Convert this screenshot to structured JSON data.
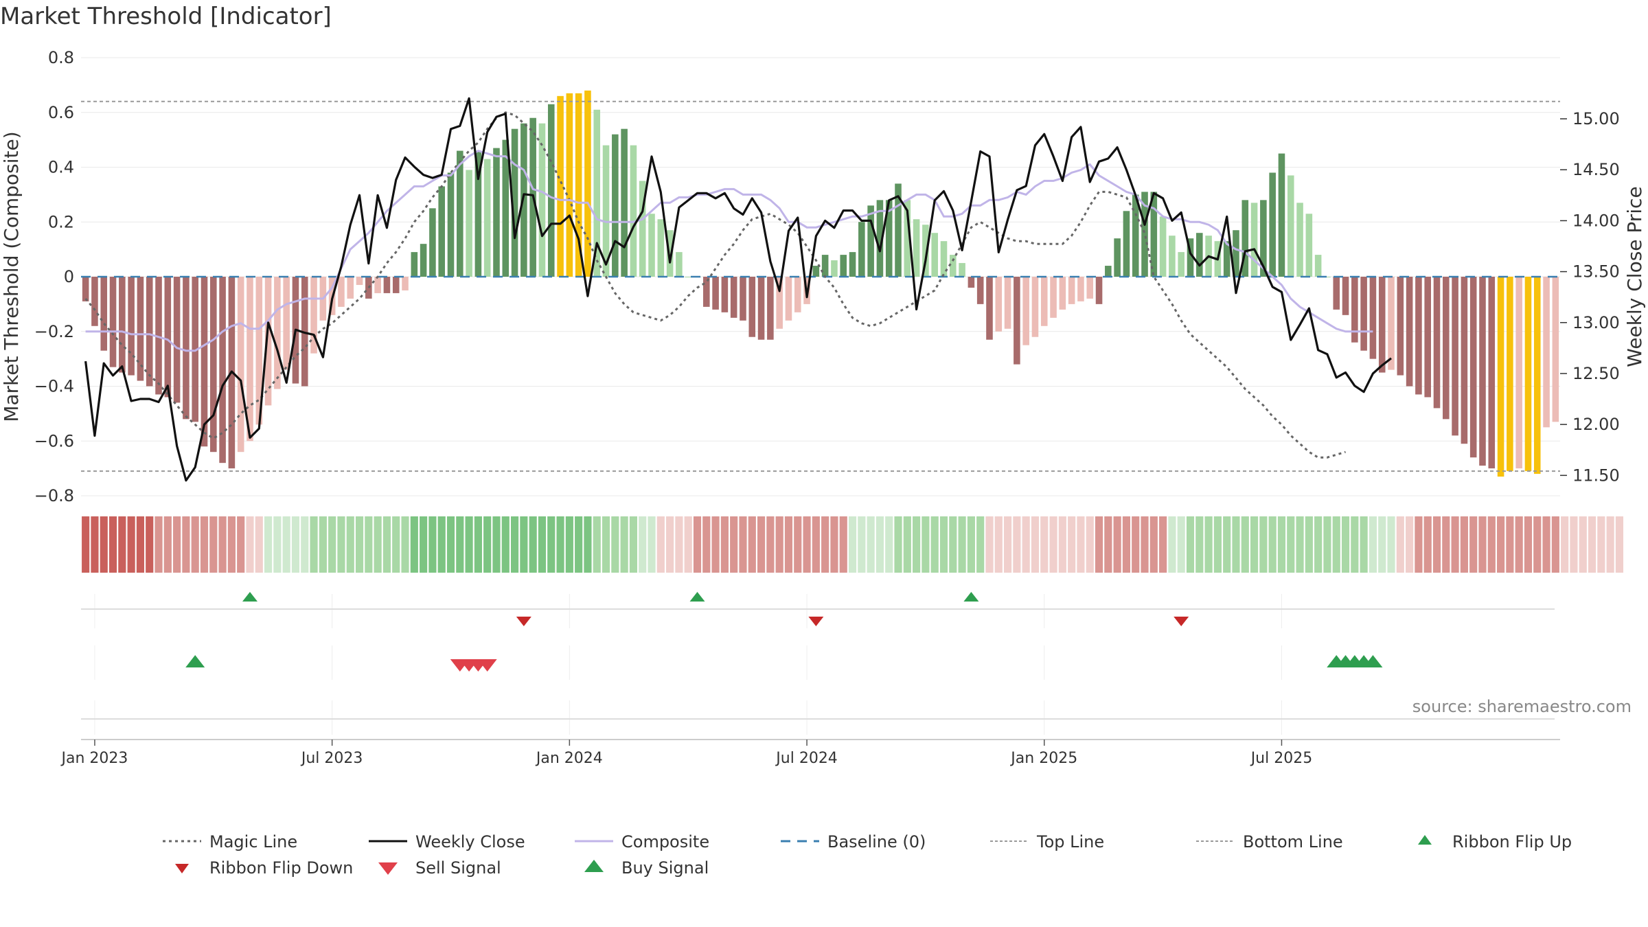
{
  "title": "Market Threshold [Indicator]",
  "source": "source: sharemaestro.com",
  "chart_data": {
    "type": "bar+line",
    "title": "Market Threshold [Indicator]",
    "ylabel_left": "Market Threshold (Composite)",
    "ylabel_right": "Weekly Close Price",
    "ylim_left": [
      -0.8,
      0.8
    ],
    "ylim_right": [
      11.3,
      15.6
    ],
    "yticks_left": [
      "0.8",
      "0.6",
      "0.4",
      "0.2",
      "0",
      "−0.2",
      "−0.4",
      "−0.6",
      "−0.8"
    ],
    "yticks_left_values": [
      0.8,
      0.6,
      0.4,
      0.2,
      0,
      -0.2,
      -0.4,
      -0.6,
      -0.8
    ],
    "yticks_right": [
      "15.00",
      "14.50",
      "14.00",
      "13.50",
      "13.00",
      "12.50",
      "12.00",
      "11.50"
    ],
    "yticks_right_values": [
      15.0,
      14.5,
      14.0,
      13.5,
      13.0,
      12.5,
      12.0,
      11.5
    ],
    "xticks": [
      "Jan 2023",
      "Jul 2023",
      "Jan 2024",
      "Jul 2024",
      "Jan 2025",
      "Jul 2025"
    ],
    "xticks_week_index": [
      1,
      27,
      53,
      79,
      105,
      131
    ],
    "top_line": 0.64,
    "bottom_line": -0.71,
    "grid": true,
    "legend_position": "bottom",
    "colors": {
      "magic": "#666666",
      "close": "#111111",
      "composite": "#c0b4e8",
      "baseline": "#3a7fb0",
      "threshold_lines": "#999999",
      "ribbon_up": "#2e9e4f",
      "ribbon_down": "#c62828",
      "sell": "#e0404a",
      "buy": "#2e9e4f",
      "gold": "#f7c10b"
    },
    "composite_bars": [
      -0.09,
      -0.18,
      -0.27,
      -0.33,
      -0.35,
      -0.36,
      -0.38,
      -0.4,
      -0.43,
      -0.44,
      -0.46,
      -0.52,
      -0.53,
      -0.62,
      -0.64,
      -0.68,
      -0.7,
      -0.64,
      -0.6,
      -0.54,
      -0.47,
      -0.41,
      -0.34,
      -0.39,
      -0.4,
      -0.28,
      -0.16,
      -0.14,
      -0.11,
      -0.08,
      -0.03,
      -0.08,
      -0.06,
      -0.06,
      -0.06,
      -0.05,
      0.09,
      0.12,
      0.25,
      0.33,
      0.38,
      0.46,
      0.39,
      0.46,
      0.43,
      0.47,
      0.5,
      0.54,
      0.56,
      0.58,
      0.56,
      0.63,
      0.66,
      0.67,
      0.67,
      0.68,
      0.61,
      0.48,
      0.52,
      0.54,
      0.48,
      0.35,
      0.23,
      0.21,
      0.17,
      0.09,
      0.0,
      0.0,
      -0.11,
      -0.12,
      -0.13,
      -0.15,
      -0.16,
      -0.22,
      -0.23,
      -0.23,
      -0.19,
      -0.16,
      -0.13,
      -0.1,
      0.04,
      0.08,
      0.06,
      0.08,
      0.09,
      0.2,
      0.26,
      0.28,
      0.28,
      0.34,
      0.28,
      0.21,
      0.19,
      0.16,
      0.13,
      0.08,
      0.05,
      -0.04,
      -0.1,
      -0.23,
      -0.2,
      -0.19,
      -0.32,
      -0.25,
      -0.22,
      -0.18,
      -0.15,
      -0.12,
      -0.1,
      -0.09,
      -0.08,
      -0.1,
      0.04,
      0.14,
      0.24,
      0.3,
      0.31,
      0.31,
      0.22,
      0.15,
      0.09,
      0.14,
      0.16,
      0.15,
      0.13,
      0.13,
      0.17,
      0.28,
      0.27,
      0.28,
      0.38,
      0.45,
      0.37,
      0.27,
      0.23,
      0.08,
      0.0,
      -0.12,
      -0.14,
      -0.24,
      -0.27,
      -0.3,
      -0.35,
      -0.34,
      -0.36,
      -0.4,
      -0.43,
      -0.44,
      -0.48,
      -0.52,
      -0.58,
      -0.61,
      -0.66,
      -0.69,
      -0.7,
      -0.73,
      -0.71,
      -0.7,
      -0.71,
      -0.72,
      -0.55,
      -0.53
    ],
    "weekly_close": [
      12.62,
      11.89,
      12.6,
      12.48,
      12.57,
      12.23,
      12.25,
      12.25,
      12.22,
      12.38,
      11.79,
      11.45,
      11.58,
      12.0,
      12.09,
      12.38,
      12.52,
      12.43,
      11.87,
      11.96,
      13.0,
      12.73,
      12.41,
      12.93,
      12.9,
      12.88,
      12.66,
      13.23,
      13.55,
      13.96,
      14.25,
      13.58,
      14.25,
      13.93,
      14.4,
      14.62,
      14.53,
      14.45,
      14.42,
      14.45,
      14.9,
      14.93,
      15.2,
      14.41,
      14.87,
      15.02,
      15.05,
      13.83,
      14.26,
      14.25,
      13.85,
      13.97,
      13.97,
      14.05,
      13.82,
      13.26,
      13.78,
      13.57,
      13.8,
      13.74,
      13.94,
      14.09,
      14.63,
      14.28,
      13.59,
      14.13,
      14.2,
      14.27,
      14.27,
      14.22,
      14.27,
      14.12,
      14.06,
      14.22,
      14.08,
      13.6,
      13.31,
      13.9,
      14.03,
      13.25,
      13.85,
      14.0,
      13.93,
      14.1,
      14.1,
      14.0,
      14.0,
      13.7,
      14.2,
      14.24,
      14.1,
      13.13,
      13.61,
      14.2,
      14.29,
      14.1,
      13.71,
      14.19,
      14.68,
      14.63,
      13.69,
      14.01,
      14.3,
      14.34,
      14.74,
      14.85,
      14.63,
      14.39,
      14.82,
      14.92,
      14.38,
      14.58,
      14.61,
      14.72,
      14.5,
      14.25,
      13.96,
      14.27,
      14.22,
      14.0,
      14.08,
      13.68,
      13.56,
      13.65,
      13.62,
      14.04,
      13.29,
      13.7,
      13.72,
      13.55,
      13.35,
      13.3,
      12.83,
      12.98,
      13.14,
      12.73,
      12.69,
      12.46,
      12.51,
      12.38,
      12.32,
      12.5,
      12.58,
      12.65
    ],
    "composite_line": [
      -0.2,
      -0.2,
      -0.2,
      -0.2,
      -0.2,
      -0.21,
      -0.21,
      -0.21,
      -0.22,
      -0.23,
      -0.26,
      -0.27,
      -0.27,
      -0.25,
      -0.23,
      -0.2,
      -0.18,
      -0.17,
      -0.19,
      -0.19,
      -0.16,
      -0.12,
      -0.1,
      -0.09,
      -0.08,
      -0.08,
      -0.08,
      -0.04,
      0.03,
      0.1,
      0.13,
      0.16,
      0.2,
      0.24,
      0.27,
      0.3,
      0.33,
      0.33,
      0.35,
      0.37,
      0.37,
      0.41,
      0.44,
      0.46,
      0.45,
      0.44,
      0.44,
      0.41,
      0.39,
      0.32,
      0.31,
      0.29,
      0.28,
      0.28,
      0.27,
      0.27,
      0.21,
      0.2,
      0.2,
      0.2,
      0.2,
      0.21,
      0.24,
      0.27,
      0.27,
      0.29,
      0.29,
      0.3,
      0.3,
      0.31,
      0.32,
      0.32,
      0.3,
      0.3,
      0.3,
      0.28,
      0.25,
      0.2,
      0.2,
      0.18,
      0.18,
      0.19,
      0.2,
      0.21,
      0.22,
      0.22,
      0.23,
      0.24,
      0.24,
      0.26,
      0.28,
      0.3,
      0.3,
      0.28,
      0.22,
      0.22,
      0.23,
      0.26,
      0.26,
      0.28,
      0.28,
      0.29,
      0.31,
      0.3,
      0.33,
      0.35,
      0.35,
      0.36,
      0.38,
      0.39,
      0.41,
      0.37,
      0.35,
      0.33,
      0.31,
      0.3,
      0.26,
      0.25,
      0.22,
      0.21,
      0.21,
      0.2,
      0.2,
      0.19,
      0.17,
      0.12,
      0.1,
      0.09,
      0.06,
      0.03,
      0.0,
      -0.03,
      -0.08,
      -0.11,
      -0.13,
      -0.15,
      -0.17,
      -0.19,
      -0.2,
      -0.2,
      -0.2,
      -0.2
    ],
    "magic_line": [
      -0.08,
      -0.12,
      -0.17,
      -0.21,
      -0.25,
      -0.28,
      -0.32,
      -0.36,
      -0.39,
      -0.43,
      -0.47,
      -0.51,
      -0.54,
      -0.57,
      -0.59,
      -0.57,
      -0.54,
      -0.5,
      -0.47,
      -0.45,
      -0.41,
      -0.37,
      -0.33,
      -0.29,
      -0.26,
      -0.22,
      -0.19,
      -0.17,
      -0.14,
      -0.11,
      -0.08,
      -0.04,
      0.0,
      0.05,
      0.09,
      0.14,
      0.2,
      0.24,
      0.29,
      0.33,
      0.38,
      0.42,
      0.46,
      0.49,
      0.54,
      0.58,
      0.6,
      0.59,
      0.56,
      0.53,
      0.48,
      0.42,
      0.35,
      0.28,
      0.2,
      0.14,
      0.06,
      0.0,
      -0.06,
      -0.1,
      -0.13,
      -0.14,
      -0.15,
      -0.16,
      -0.14,
      -0.11,
      -0.07,
      -0.04,
      -0.02,
      0.03,
      0.08,
      0.12,
      0.17,
      0.21,
      0.22,
      0.23,
      0.21,
      0.19,
      0.16,
      0.11,
      0.06,
      0.0,
      -0.04,
      -0.1,
      -0.15,
      -0.17,
      -0.18,
      -0.17,
      -0.15,
      -0.13,
      -0.11,
      -0.09,
      -0.07,
      -0.05,
      0.01,
      0.06,
      0.12,
      0.18,
      0.2,
      0.18,
      0.16,
      0.14,
      0.13,
      0.13,
      0.12,
      0.12,
      0.12,
      0.12,
      0.15,
      0.2,
      0.26,
      0.31,
      0.31,
      0.3,
      0.29,
      0.23,
      0.16,
      0.0,
      -0.05,
      -0.1,
      -0.16,
      -0.21,
      -0.24,
      -0.27,
      -0.3,
      -0.33,
      -0.37,
      -0.41,
      -0.44,
      -0.47,
      -0.51,
      -0.54,
      -0.58,
      -0.61,
      -0.64,
      -0.66,
      -0.66,
      -0.65,
      -0.64
    ],
    "ribbon": [
      -3,
      -3,
      -3,
      -3,
      -3,
      -3,
      -3,
      -3,
      -2,
      -2,
      -2,
      -2,
      -2,
      -2,
      -2,
      -2,
      -2,
      -2,
      -1,
      -1,
      1,
      1,
      1,
      1,
      1,
      2,
      2,
      2,
      2,
      2,
      2,
      2,
      2,
      2,
      2,
      2,
      3,
      3,
      3,
      3,
      3,
      3,
      3,
      3,
      3,
      3,
      3,
      3,
      3,
      3,
      3,
      3,
      3,
      3,
      3,
      3,
      2,
      2,
      2,
      2,
      2,
      1,
      1,
      -1,
      -1,
      -1,
      -1,
      -2,
      -2,
      -2,
      -2,
      -2,
      -2,
      -2,
      -2,
      -2,
      -2,
      -2,
      -2,
      -2,
      -2,
      -2,
      -2,
      -2,
      1,
      1,
      1,
      1,
      1,
      2,
      2,
      2,
      2,
      2,
      2,
      2,
      2,
      2,
      2,
      -1,
      -1,
      -1,
      -1,
      -1,
      -1,
      -1,
      -1,
      -1,
      -1,
      -1,
      -1,
      -2,
      -2,
      -2,
      -2,
      -2,
      -2,
      -2,
      -2,
      1,
      1,
      2,
      2,
      2,
      2,
      2,
      2,
      2,
      2,
      2,
      2,
      2,
      2,
      2,
      2,
      2,
      2,
      2,
      2,
      2,
      2,
      1,
      1,
      1,
      -1,
      -1,
      -2,
      -2,
      -2,
      -2,
      -2,
      -2,
      -2,
      -2,
      -2,
      -2,
      -2,
      -2,
      -2,
      -2,
      -2,
      -2,
      -1,
      -1,
      -1,
      -1,
      -1,
      -1,
      -1
    ],
    "ribbon_flip_up_weeks": [
      18,
      67,
      97
    ],
    "ribbon_flip_down_weeks": [
      48,
      80,
      120
    ],
    "buy_signal_weeks": [
      12,
      137,
      138,
      139,
      140,
      141
    ],
    "sell_signal_weeks": [
      41,
      42,
      43,
      44
    ],
    "legend": [
      "Magic Line",
      "Weekly Close",
      "Composite",
      "Baseline (0)",
      "Top Line",
      "Bottom Line",
      "Ribbon Flip Up",
      "Ribbon Flip Down",
      "Sell Signal",
      "Buy Signal"
    ]
  }
}
